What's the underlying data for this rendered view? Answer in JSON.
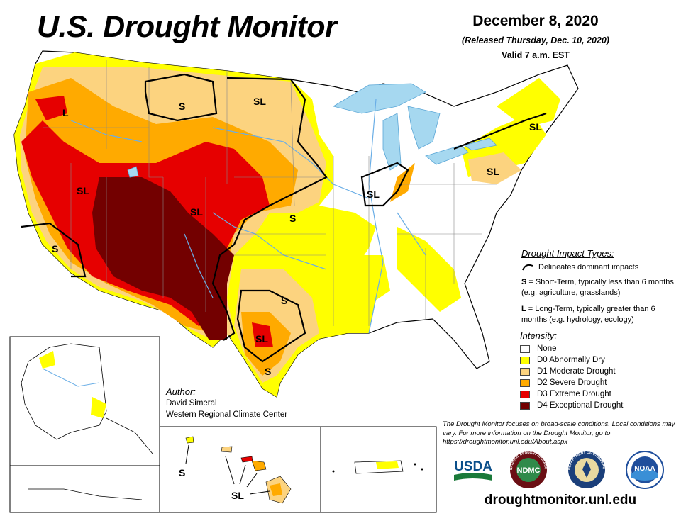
{
  "header": {
    "title": "U.S. Drought Monitor",
    "date": "December 8, 2020",
    "released": "(Released Thursday, Dec. 10, 2020)",
    "valid": "Valid 7 a.m. EST"
  },
  "map_labels": {
    "or": "L",
    "mt": "S",
    "nd": "SL",
    "sw": "SL",
    "co": "SL",
    "ks": "S",
    "socal": "S",
    "il": "SL",
    "pa": "SL",
    "ne": "SL",
    "tx_n": "S",
    "tx_c": "SL",
    "tx_s": "S",
    "hawaii_s": "S",
    "hawaii_sl": "SL"
  },
  "impact_legend": {
    "title": "Drought Impact Types:",
    "line_desc": "Delineates dominant impacts",
    "s_key": "S",
    "s_desc": "= Short-Term, typically less than 6 months (e.g. agriculture, grasslands)",
    "l_key": "L",
    "l_desc": "= Long-Term, typically greater than 6 months (e.g. hydrology, ecology)"
  },
  "intensity_legend": {
    "title": "Intensity:",
    "levels": [
      {
        "label": "None",
        "color": "#ffffff"
      },
      {
        "label": "D0 Abnormally Dry",
        "color": "#ffff00"
      },
      {
        "label": "D1 Moderate Drought",
        "color": "#fcd37f"
      },
      {
        "label": "D2 Severe Drought",
        "color": "#ffaa00"
      },
      {
        "label": "D3 Extreme Drought",
        "color": "#e60000"
      },
      {
        "label": "D4 Exceptional Drought",
        "color": "#730000"
      }
    ]
  },
  "author": {
    "title": "Author:",
    "name": "David Simeral",
    "org": "Western Regional Climate Center"
  },
  "note": "The Drought Monitor focuses on broad-scale conditions. Local conditions may vary. For more information on the Drought Monitor, go to https://droughtmonitor.unl.edu/About.aspx",
  "logos": {
    "usda": "USDA",
    "ndmc": "NDMC",
    "ndmc_ring": "NATIONAL DROUGHT MITIGATION CENTER",
    "commerce_ring": "DEPARTMENT OF COMMERCE",
    "noaa": "NOAA"
  },
  "url": "droughtmonitor.unl.edu",
  "colors": {
    "water": "#a6d8f0",
    "boundary": "#888888",
    "impact_line": "#000000",
    "river": "#6aaee6"
  }
}
